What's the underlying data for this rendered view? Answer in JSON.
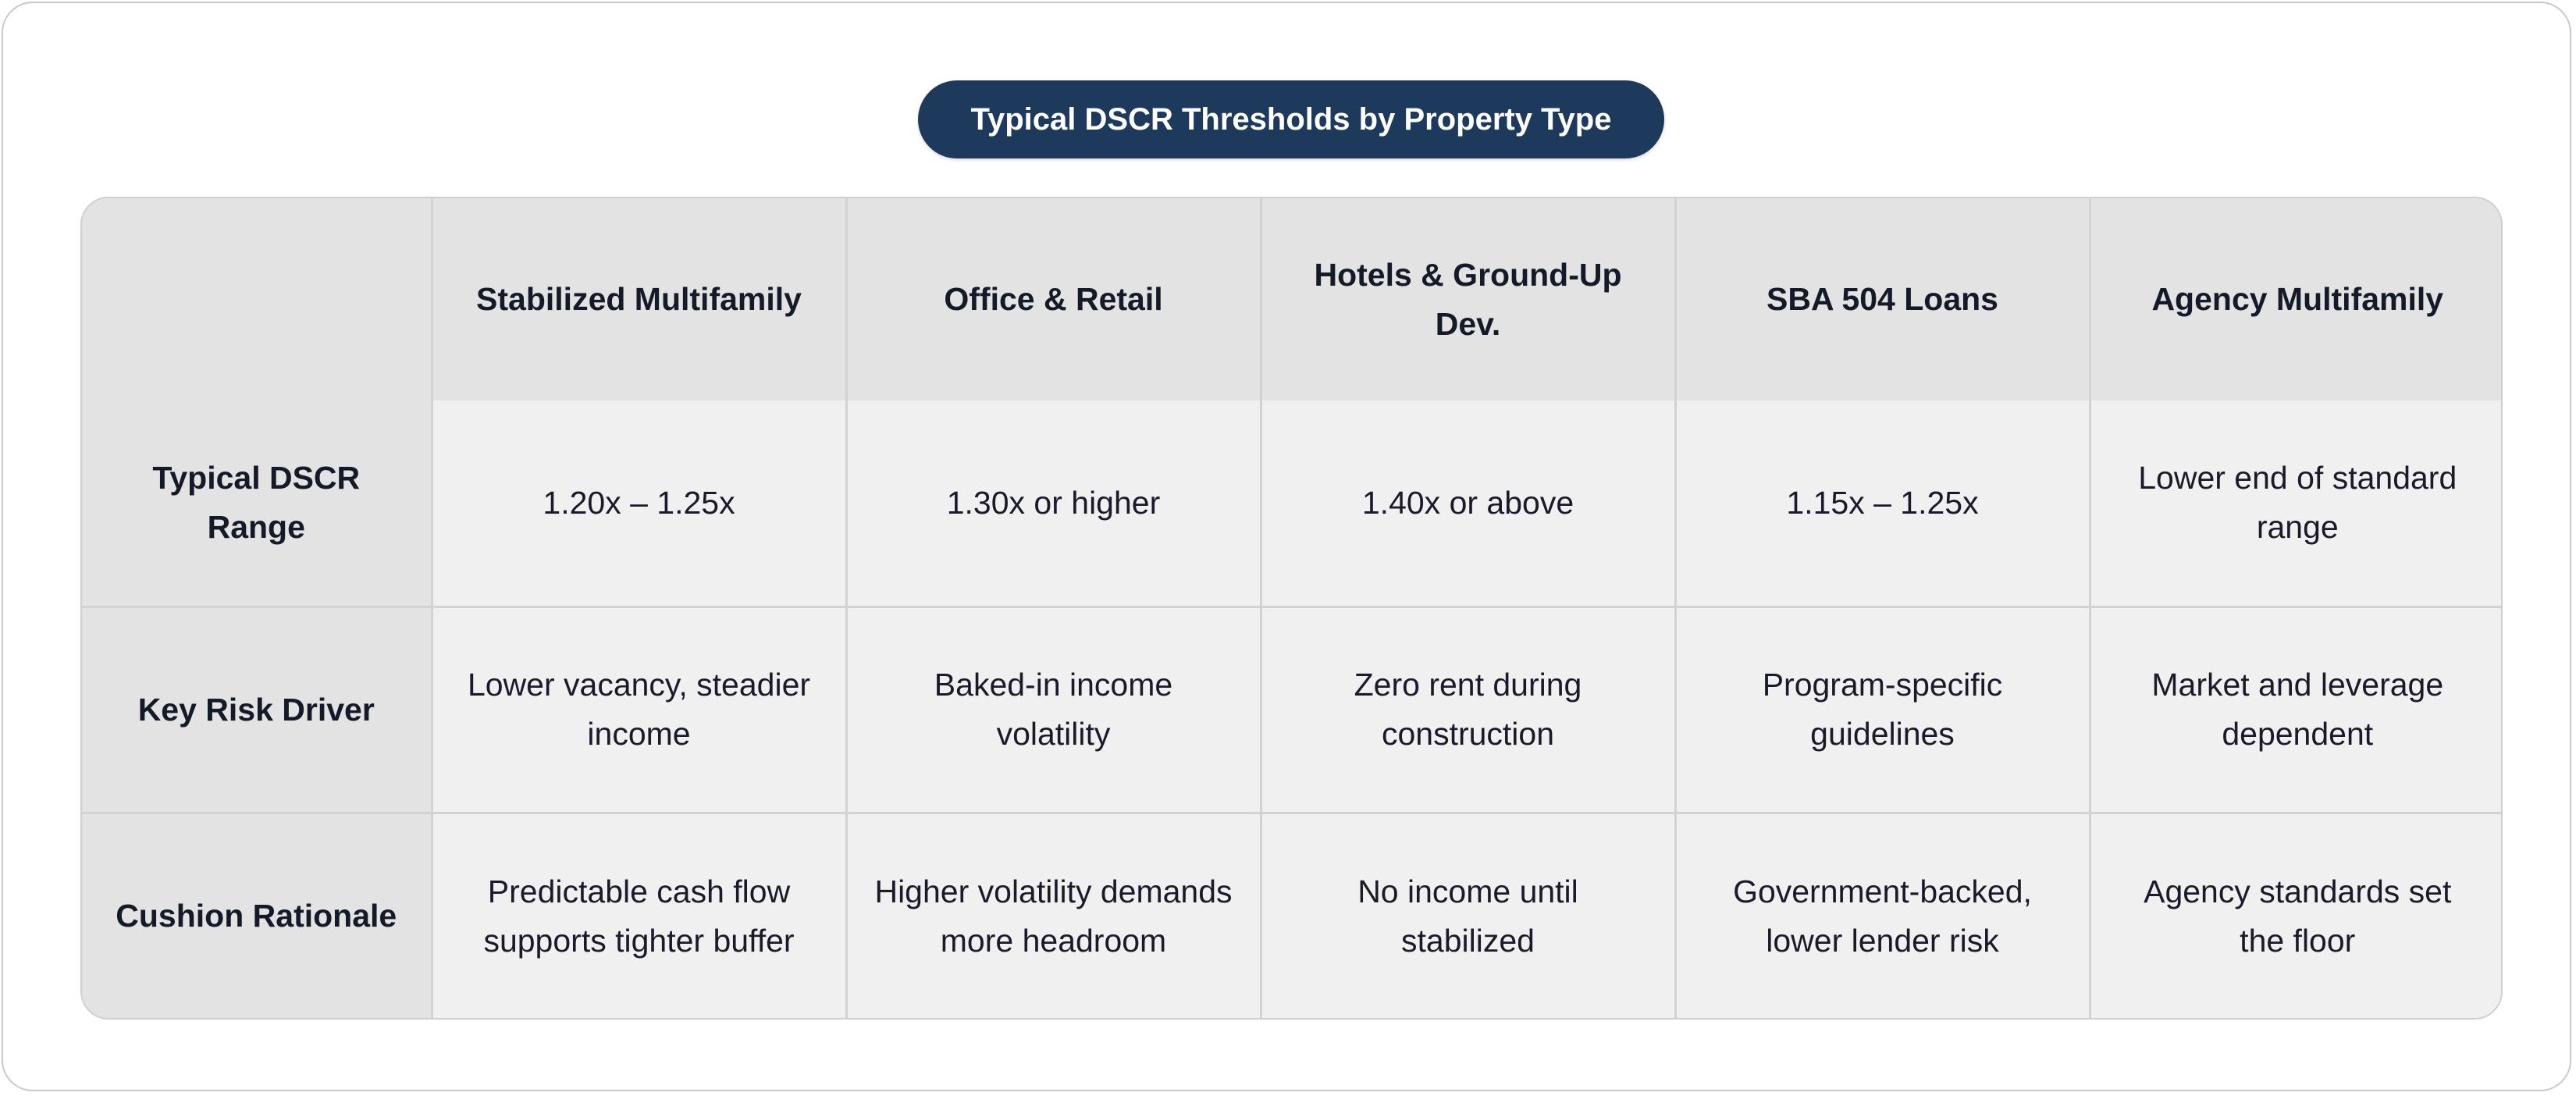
{
  "title": "Typical DSCR Thresholds by Property Type",
  "table": {
    "corner": "",
    "columns": [
      "Stabilized Multifamily",
      "Office & Retail",
      "Hotels & Ground-Up Dev.",
      "SBA 504 Loans",
      "Agency Multifamily"
    ],
    "rows": [
      {
        "label": "Typical DSCR Range",
        "cells": [
          "1.20x – 1.25x",
          "1.30x or higher",
          "1.40x or above",
          "1.15x – 1.25x",
          "Lower end of standard range"
        ]
      },
      {
        "label": "Key Risk Driver",
        "cells": [
          "Lower vacancy, steadier income",
          "Baked-in income volatility",
          "Zero rent during construction",
          "Program-specific guidelines",
          "Market and leverage dependent"
        ]
      },
      {
        "label": "Cushion Rationale",
        "cells": [
          "Predictable cash flow supports tighter buffer",
          "Higher volatility demands more headroom",
          "No income until stabilized",
          "Government-backed, lower lender risk",
          "Agency standards set the floor"
        ]
      }
    ]
  },
  "colors": {
    "title_bg": "#1d3a5c",
    "header_bg": "#e3e3e3",
    "cell_bg": "#f0f0f0",
    "border": "#d2d2d2"
  }
}
